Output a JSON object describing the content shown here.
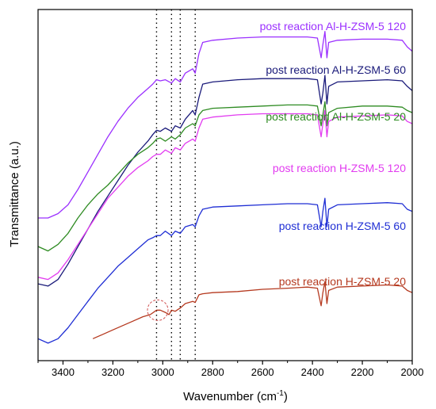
{
  "chart_data": {
    "type": "line",
    "title": "",
    "xlabel": "Wavenumber (cm",
    "xlabel_sup": "-1",
    "xlabel_tail": ")",
    "ylabel": "Transmittance (a.u.)",
    "xlim": [
      3500,
      2000
    ],
    "x_reversed": true,
    "x_ticks": [
      "3400",
      "3200",
      "3000",
      "2800",
      "2600",
      "2400",
      "2200",
      "2000"
    ],
    "y_ticks": false,
    "grid": false,
    "reference_lines_x": [
      3025,
      2965,
      2930,
      2870
    ],
    "highlight_circle_x": 3020,
    "series": [
      {
        "name": "post reaction Al-H-ZSM-5 120",
        "color": "#9b30ff",
        "points": [
          [
            3500,
            -0.35
          ],
          [
            3460,
            -0.35
          ],
          [
            3420,
            -0.33
          ],
          [
            3380,
            -0.29
          ],
          [
            3340,
            -0.22
          ],
          [
            3300,
            -0.14
          ],
          [
            3260,
            -0.06
          ],
          [
            3220,
            0.02
          ],
          [
            3180,
            0.09
          ],
          [
            3140,
            0.15
          ],
          [
            3100,
            0.2
          ],
          [
            3060,
            0.24
          ],
          [
            3040,
            0.26
          ],
          [
            3025,
            0.28
          ],
          [
            3010,
            0.275
          ],
          [
            2990,
            0.28
          ],
          [
            2965,
            0.265
          ],
          [
            2950,
            0.285
          ],
          [
            2930,
            0.27
          ],
          [
            2910,
            0.31
          ],
          [
            2880,
            0.33
          ],
          [
            2870,
            0.31
          ],
          [
            2855,
            0.4
          ],
          [
            2840,
            0.45
          ],
          [
            2800,
            0.46
          ],
          [
            2700,
            0.47
          ],
          [
            2600,
            0.475
          ],
          [
            2500,
            0.475
          ],
          [
            2420,
            0.475
          ],
          [
            2380,
            0.47
          ],
          [
            2365,
            0.38
          ],
          [
            2358,
            0.44
          ],
          [
            2350,
            0.5
          ],
          [
            2342,
            0.38
          ],
          [
            2335,
            0.45
          ],
          [
            2300,
            0.46
          ],
          [
            2200,
            0.465
          ],
          [
            2100,
            0.465
          ],
          [
            2040,
            0.46
          ],
          [
            2020,
            0.43
          ],
          [
            2000,
            0.41
          ]
        ]
      },
      {
        "name": "post reaction Al-H-ZSM-5 60",
        "color": "#1a1a7a",
        "points": [
          [
            3500,
            -0.65
          ],
          [
            3460,
            -0.66
          ],
          [
            3420,
            -0.63
          ],
          [
            3380,
            -0.56
          ],
          [
            3340,
            -0.48
          ],
          [
            3300,
            -0.4
          ],
          [
            3260,
            -0.32
          ],
          [
            3220,
            -0.25
          ],
          [
            3180,
            -0.18
          ],
          [
            3140,
            -0.11
          ],
          [
            3100,
            -0.05
          ],
          [
            3060,
            0.0
          ],
          [
            3040,
            0.03
          ],
          [
            3025,
            0.05
          ],
          [
            3010,
            0.045
          ],
          [
            2990,
            0.06
          ],
          [
            2965,
            0.045
          ],
          [
            2950,
            0.07
          ],
          [
            2930,
            0.06
          ],
          [
            2910,
            0.1
          ],
          [
            2880,
            0.14
          ],
          [
            2870,
            0.12
          ],
          [
            2855,
            0.2
          ],
          [
            2840,
            0.26
          ],
          [
            2800,
            0.27
          ],
          [
            2700,
            0.28
          ],
          [
            2600,
            0.285
          ],
          [
            2500,
            0.285
          ],
          [
            2420,
            0.285
          ],
          [
            2380,
            0.28
          ],
          [
            2365,
            0.17
          ],
          [
            2358,
            0.22
          ],
          [
            2350,
            0.3
          ],
          [
            2342,
            0.17
          ],
          [
            2335,
            0.25
          ],
          [
            2300,
            0.27
          ],
          [
            2200,
            0.275
          ],
          [
            2100,
            0.28
          ],
          [
            2040,
            0.275
          ],
          [
            2020,
            0.25
          ],
          [
            2000,
            0.23
          ]
        ]
      },
      {
        "name": "post reaction Al-H-ZSM-5 20",
        "color": "#2e8b22",
        "points": [
          [
            3500,
            -0.48
          ],
          [
            3460,
            -0.5
          ],
          [
            3420,
            -0.47
          ],
          [
            3380,
            -0.42
          ],
          [
            3340,
            -0.35
          ],
          [
            3300,
            -0.29
          ],
          [
            3260,
            -0.24
          ],
          [
            3220,
            -0.2
          ],
          [
            3180,
            -0.15
          ],
          [
            3140,
            -0.1
          ],
          [
            3100,
            -0.06
          ],
          [
            3060,
            -0.03
          ],
          [
            3040,
            -0.01
          ],
          [
            3025,
            0.01
          ],
          [
            3010,
            0.015
          ],
          [
            2990,
            0.0
          ],
          [
            2965,
            0.02
          ],
          [
            2950,
            0.01
          ],
          [
            2930,
            0.03
          ],
          [
            2910,
            0.06
          ],
          [
            2880,
            0.08
          ],
          [
            2870,
            0.07
          ],
          [
            2855,
            0.12
          ],
          [
            2840,
            0.14
          ],
          [
            2800,
            0.15
          ],
          [
            2700,
            0.155
          ],
          [
            2600,
            0.16
          ],
          [
            2500,
            0.165
          ],
          [
            2420,
            0.165
          ],
          [
            2380,
            0.16
          ],
          [
            2365,
            0.07
          ],
          [
            2358,
            0.12
          ],
          [
            2350,
            0.18
          ],
          [
            2342,
            0.07
          ],
          [
            2335,
            0.13
          ],
          [
            2300,
            0.15
          ],
          [
            2200,
            0.16
          ],
          [
            2100,
            0.16
          ],
          [
            2040,
            0.155
          ],
          [
            2020,
            0.14
          ],
          [
            2000,
            0.13
          ]
        ]
      },
      {
        "name": "post reaction H-ZSM-5 120",
        "color": "#e23cf0",
        "points": [
          [
            3500,
            -0.62
          ],
          [
            3460,
            -0.63
          ],
          [
            3420,
            -0.6
          ],
          [
            3380,
            -0.54
          ],
          [
            3340,
            -0.47
          ],
          [
            3300,
            -0.4
          ],
          [
            3260,
            -0.33
          ],
          [
            3220,
            -0.26
          ],
          [
            3180,
            -0.21
          ],
          [
            3140,
            -0.16
          ],
          [
            3100,
            -0.12
          ],
          [
            3060,
            -0.09
          ],
          [
            3040,
            -0.07
          ],
          [
            3025,
            -0.06
          ],
          [
            3010,
            -0.06
          ],
          [
            2990,
            -0.04
          ],
          [
            2965,
            -0.055
          ],
          [
            2950,
            -0.03
          ],
          [
            2930,
            -0.04
          ],
          [
            2910,
            -0.01
          ],
          [
            2880,
            0.01
          ],
          [
            2870,
            0.0
          ],
          [
            2855,
            0.06
          ],
          [
            2840,
            0.1
          ],
          [
            2800,
            0.11
          ],
          [
            2700,
            0.12
          ],
          [
            2600,
            0.125
          ],
          [
            2500,
            0.125
          ],
          [
            2420,
            0.125
          ],
          [
            2380,
            0.12
          ],
          [
            2365,
            0.02
          ],
          [
            2358,
            0.08
          ],
          [
            2350,
            0.14
          ],
          [
            2342,
            0.02
          ],
          [
            2335,
            0.09
          ],
          [
            2300,
            0.11
          ],
          [
            2200,
            0.115
          ],
          [
            2100,
            0.12
          ],
          [
            2040,
            0.115
          ],
          [
            2020,
            0.09
          ],
          [
            2000,
            0.08
          ]
        ]
      },
      {
        "name": "post reaction H-ZSM-5 60",
        "color": "#1f2ed4",
        "points": [
          [
            3500,
            -0.9
          ],
          [
            3460,
            -0.92
          ],
          [
            3420,
            -0.9
          ],
          [
            3380,
            -0.85
          ],
          [
            3340,
            -0.79
          ],
          [
            3300,
            -0.73
          ],
          [
            3260,
            -0.67
          ],
          [
            3220,
            -0.62
          ],
          [
            3180,
            -0.57
          ],
          [
            3140,
            -0.53
          ],
          [
            3100,
            -0.49
          ],
          [
            3060,
            -0.45
          ],
          [
            3040,
            -0.44
          ],
          [
            3025,
            -0.43
          ],
          [
            3010,
            -0.43
          ],
          [
            2990,
            -0.41
          ],
          [
            2965,
            -0.43
          ],
          [
            2950,
            -0.41
          ],
          [
            2930,
            -0.42
          ],
          [
            2910,
            -0.39
          ],
          [
            2880,
            -0.38
          ],
          [
            2870,
            -0.39
          ],
          [
            2855,
            -0.34
          ],
          [
            2840,
            -0.31
          ],
          [
            2800,
            -0.3
          ],
          [
            2700,
            -0.295
          ],
          [
            2600,
            -0.29
          ],
          [
            2500,
            -0.285
          ],
          [
            2420,
            -0.285
          ],
          [
            2380,
            -0.29
          ],
          [
            2365,
            -0.39
          ],
          [
            2358,
            -0.32
          ],
          [
            2350,
            -0.26
          ],
          [
            2342,
            -0.39
          ],
          [
            2335,
            -0.31
          ],
          [
            2300,
            -0.29
          ],
          [
            2200,
            -0.285
          ],
          [
            2100,
            -0.28
          ],
          [
            2040,
            -0.285
          ],
          [
            2020,
            -0.31
          ],
          [
            2000,
            -0.32
          ]
        ]
      },
      {
        "name": "post reaction H-ZSM-5 20",
        "color": "#b5391f",
        "points": [
          [
            3280,
            -0.9
          ],
          [
            3240,
            -0.88
          ],
          [
            3200,
            -0.86
          ],
          [
            3160,
            -0.84
          ],
          [
            3120,
            -0.82
          ],
          [
            3080,
            -0.8
          ],
          [
            3050,
            -0.79
          ],
          [
            3025,
            -0.77
          ],
          [
            3010,
            -0.77
          ],
          [
            2990,
            -0.78
          ],
          [
            2975,
            -0.79
          ],
          [
            2965,
            -0.77
          ],
          [
            2950,
            -0.775
          ],
          [
            2930,
            -0.76
          ],
          [
            2910,
            -0.74
          ],
          [
            2880,
            -0.73
          ],
          [
            2870,
            -0.735
          ],
          [
            2855,
            -0.7
          ],
          [
            2840,
            -0.695
          ],
          [
            2800,
            -0.69
          ],
          [
            2700,
            -0.685
          ],
          [
            2600,
            -0.675
          ],
          [
            2500,
            -0.67
          ],
          [
            2420,
            -0.665
          ],
          [
            2380,
            -0.67
          ],
          [
            2365,
            -0.75
          ],
          [
            2358,
            -0.69
          ],
          [
            2350,
            -0.64
          ],
          [
            2342,
            -0.74
          ],
          [
            2335,
            -0.68
          ],
          [
            2300,
            -0.665
          ],
          [
            2200,
            -0.66
          ],
          [
            2100,
            -0.655
          ],
          [
            2040,
            -0.66
          ],
          [
            2020,
            -0.68
          ],
          [
            2000,
            -0.69
          ]
        ]
      }
    ]
  }
}
